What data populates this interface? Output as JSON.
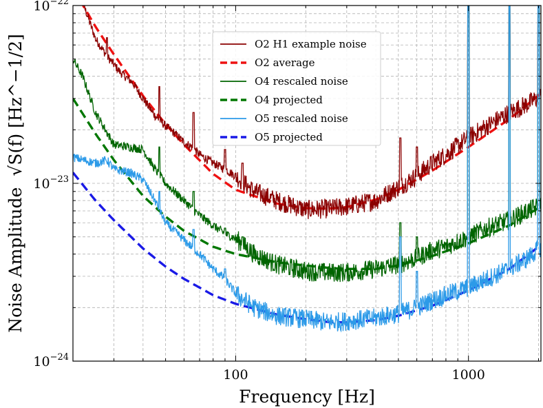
{
  "chart_data": {
    "type": "line",
    "x_scale": "log",
    "y_scale": "log",
    "xlabel": "Frequency [Hz]",
    "ylabel_text": "Noise Amplitude",
    "ylabel_math": "√S(f) [Hz^−1/2]",
    "xlim": [
      20,
      2048
    ],
    "ylim": [
      1e-24,
      1e-22
    ],
    "x_ticks": [
      {
        "value": 100,
        "label": "100"
      },
      {
        "value": 1000,
        "label": "1000"
      }
    ],
    "y_ticks": [
      {
        "value": 1e-24,
        "base": "10",
        "exp": "−24"
      },
      {
        "value": 1e-23,
        "base": "10",
        "exp": "−23"
      },
      {
        "value": 1e-22,
        "base": "10",
        "exp": "−22"
      }
    ],
    "grid": true,
    "legend_position": "top-center",
    "series": [
      {
        "name": "O2 H1 example noise",
        "color": "#8b0000",
        "style": "solid",
        "x": [
          20,
          25,
          28,
          32,
          36,
          40,
          45,
          50,
          55,
          60,
          65,
          70,
          80,
          90,
          100,
          120,
          150,
          200,
          250,
          300,
          400,
          500,
          600,
          700,
          800,
          1000,
          1200,
          1500,
          1800,
          2048
        ],
        "y": [
          1.5e-22,
          6.5e-23,
          5.2e-23,
          4.2e-23,
          3.7e-23,
          3e-23,
          2.4e-23,
          2.1e-23,
          1.9e-23,
          1.7e-23,
          1.6e-23,
          1.45e-23,
          1.3e-23,
          1.2e-23,
          1.1e-23,
          9e-24,
          8e-24,
          7.1e-24,
          7.2e-24,
          7.4e-24,
          8e-24,
          9.5e-24,
          1.1e-23,
          1.3e-23,
          1.45e-23,
          1.8e-23,
          2.1e-23,
          2.5e-23,
          2.8e-23,
          3.1e-23
        ],
        "spikes": [
          [
            28,
            6.6e-23
          ],
          [
            47,
            3.5e-23
          ],
          [
            66,
            2.5e-23
          ],
          [
            90,
            1.55e-23
          ],
          [
            107,
            1.3e-23
          ],
          [
            510,
            1.8e-23
          ],
          [
            600,
            1.6e-23
          ],
          [
            1000,
            1.2e-22
          ],
          [
            1500,
            1.2e-22
          ],
          [
            2000,
            1.2e-22
          ]
        ]
      },
      {
        "name": "O2 average",
        "color": "#ee1111",
        "style": "dashed",
        "x": [
          20,
          25,
          30,
          40,
          50,
          60,
          80,
          100,
          150,
          200,
          250,
          300,
          400,
          500,
          700,
          1000,
          1500,
          2048
        ],
        "y": [
          1.25e-22,
          7.6e-23,
          5.3e-23,
          3.1e-23,
          2.15e-23,
          1.65e-23,
          1.13e-23,
          9.2e-24,
          7.7e-24,
          7.25e-24,
          7.2e-24,
          7.35e-24,
          8.1e-24,
          9.2e-24,
          1.18e-23,
          1.6e-23,
          2.3e-23,
          3.2e-23
        ]
      },
      {
        "name": "O4 rescaled noise",
        "color": "#006400",
        "style": "solid",
        "x": [
          20,
          22,
          25,
          30,
          35,
          40,
          45,
          50,
          60,
          70,
          80,
          90,
          100,
          120,
          150,
          200,
          250,
          300,
          400,
          500,
          600,
          700,
          800,
          1000,
          1200,
          1500,
          1800,
          2048
        ],
        "y": [
          5e-23,
          4e-23,
          2.5e-23,
          1.65e-23,
          1.6e-23,
          1.55e-23,
          1.2e-23,
          1e-23,
          8e-24,
          6.6e-24,
          5.8e-24,
          5.2e-24,
          4.9e-24,
          4e-24,
          3.5e-24,
          3.2e-24,
          3.15e-24,
          3.15e-24,
          3.3e-24,
          3.5e-24,
          3.8e-24,
          4.2e-24,
          4.4e-24,
          5e-24,
          5.6e-24,
          6.2e-24,
          7e-24,
          7.5e-24
        ],
        "spikes": [
          [
            47,
            1.6e-23
          ],
          [
            66,
            9e-24
          ],
          [
            90,
            5.6e-24
          ],
          [
            107,
            5e-24
          ],
          [
            510,
            6e-24
          ],
          [
            600,
            5e-24
          ],
          [
            1000,
            1.2e-22
          ],
          [
            1500,
            1.2e-22
          ],
          [
            2000,
            1.2e-22
          ]
        ]
      },
      {
        "name": "O4 projected",
        "color": "#007700",
        "style": "dashed",
        "x": [
          20,
          25,
          30,
          40,
          50,
          60,
          80,
          100,
          150,
          200,
          250,
          300,
          400,
          500,
          700,
          1000,
          1500,
          2048
        ],
        "y": [
          3e-23,
          1.9e-23,
          1.35e-23,
          8.5e-24,
          6.5e-24,
          5.4e-24,
          4.4e-24,
          4e-24,
          3.6e-24,
          3.45e-24,
          3.35e-24,
          3.3e-24,
          3.3e-24,
          3.45e-24,
          3.9e-24,
          4.6e-24,
          5.8e-24,
          7.4e-24
        ]
      },
      {
        "name": "O5 rescaled noise",
        "color": "#2c9ae8",
        "style": "solid",
        "x": [
          20,
          25,
          28,
          30,
          35,
          40,
          45,
          50,
          60,
          70,
          80,
          90,
          100,
          120,
          150,
          200,
          250,
          300,
          400,
          500,
          600,
          700,
          800,
          1000,
          1200,
          1500,
          1800,
          2048
        ],
        "y": [
          1.4e-23,
          1.3e-23,
          1.35e-23,
          1.2e-23,
          1.15e-23,
          1.05e-23,
          8e-24,
          6e-24,
          4.8e-24,
          4e-24,
          3.3e-24,
          2.9e-24,
          2.4e-24,
          2e-24,
          1.8e-24,
          1.72e-24,
          1.65e-24,
          1.68e-24,
          1.75e-24,
          1.85e-24,
          2e-24,
          2.2e-24,
          2.35e-24,
          2.6e-24,
          2.9e-24,
          3.3e-24,
          3.8e-24,
          4.4e-24
        ],
        "spikes": [
          [
            47,
            9e-24
          ],
          [
            66,
            5.5e-24
          ],
          [
            90,
            3.3e-24
          ],
          [
            510,
            5e-24
          ],
          [
            600,
            3.2e-24
          ],
          [
            1000,
            1.2e-22
          ],
          [
            1500,
            1.2e-22
          ],
          [
            2000,
            1.2e-22
          ]
        ]
      },
      {
        "name": "O5 projected",
        "color": "#1a1ae6",
        "style": "dashed",
        "x": [
          20,
          25,
          30,
          40,
          50,
          60,
          80,
          100,
          150,
          200,
          250,
          300,
          400,
          500,
          700,
          1000,
          1500,
          2048
        ],
        "y": [
          1.15e-23,
          8e-24,
          6.2e-24,
          4.3e-24,
          3.4e-24,
          2.9e-24,
          2.35e-24,
          2.1e-24,
          1.83e-24,
          1.72e-24,
          1.66e-24,
          1.65e-24,
          1.7e-24,
          1.8e-24,
          2.05e-24,
          2.5e-24,
          3.3e-24,
          4.5e-24
        ]
      }
    ]
  }
}
